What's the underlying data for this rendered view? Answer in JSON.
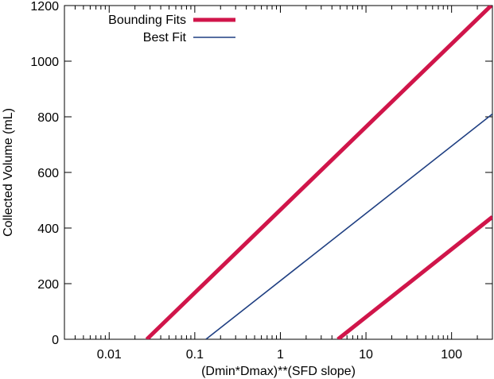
{
  "chart_data": {
    "type": "line",
    "xscale": "log",
    "xlim": [
      0.003,
      300
    ],
    "ylim": [
      0,
      1200
    ],
    "xlabel": "(Dmin*Dmax)**(SFD slope)",
    "ylabel": "Collected Volume (mL)",
    "xticks": [
      {
        "value": 0.01,
        "label": "0.01"
      },
      {
        "value": 0.1,
        "label": "0.1"
      },
      {
        "value": 1,
        "label": "1"
      },
      {
        "value": 10,
        "label": "10"
      },
      {
        "value": 100,
        "label": "100"
      }
    ],
    "yticks": [
      {
        "value": 0,
        "label": "0"
      },
      {
        "value": 200,
        "label": "200"
      },
      {
        "value": 400,
        "label": "400"
      },
      {
        "value": 600,
        "label": "600"
      },
      {
        "value": 800,
        "label": "800"
      },
      {
        "value": 1000,
        "label": "1000"
      },
      {
        "value": 1200,
        "label": "1200"
      }
    ],
    "grid": false,
    "legend_position": "top-left",
    "legend": [
      {
        "label": "Bounding Fits",
        "color": "#d0154a"
      },
      {
        "label": "Best Fit",
        "color": "#1f3f82"
      }
    ],
    "series": [
      {
        "color": "#d0154a",
        "width": 5,
        "x": [
          0.0275,
          290
        ],
        "y": [
          0,
          1200
        ]
      },
      {
        "color": "#1f3f82",
        "width": 1.6,
        "x": [
          0.135,
          300
        ],
        "y": [
          0,
          810
        ]
      },
      {
        "color": "#d0154a",
        "width": 5,
        "x": [
          4.7,
          300
        ],
        "y": [
          0,
          440
        ]
      }
    ]
  }
}
